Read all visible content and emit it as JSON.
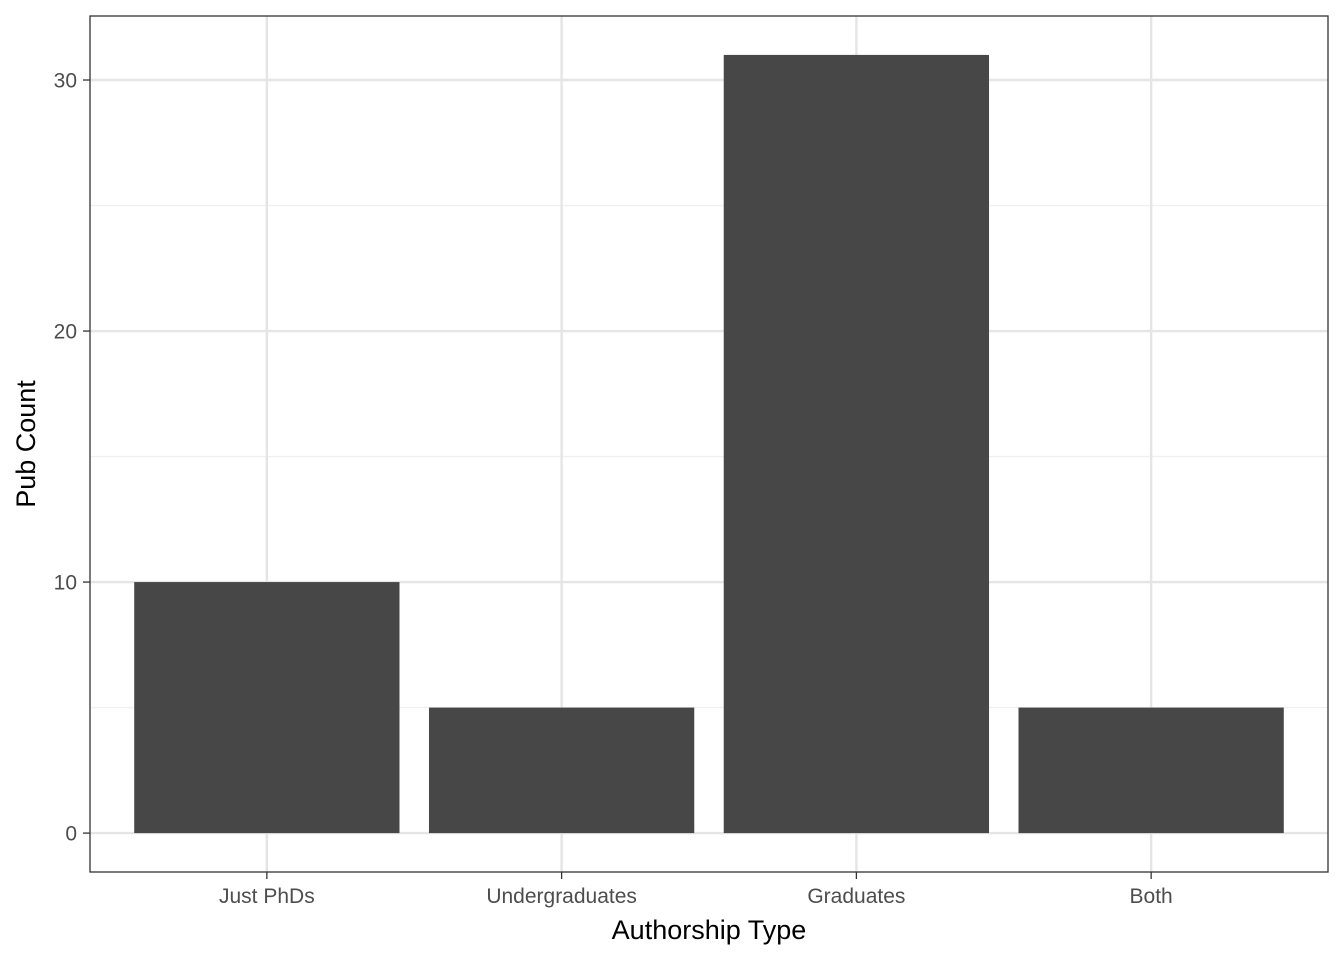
{
  "chart_data": {
    "type": "bar",
    "title": "",
    "xlabel": "Authorship Type",
    "ylabel": "Pub Count",
    "categories": [
      "Just PhDs",
      "Undergraduates",
      "Graduates",
      "Both"
    ],
    "values": [
      10,
      5,
      31,
      5
    ],
    "ylim": [
      -1.55,
      32.55
    ],
    "y_ticks": [
      0,
      10,
      20,
      30
    ],
    "y_minor_ticks": [
      5,
      15,
      25
    ],
    "grid": true,
    "legend": "none",
    "colors": {
      "bar": "#474747",
      "grid_major": "#e5e5e5",
      "grid_minor": "#f0f0f0",
      "panel_border": "#333333",
      "tick_label": "#4d4d4d",
      "axis_title": "#000000",
      "background": "#ffffff"
    }
  }
}
